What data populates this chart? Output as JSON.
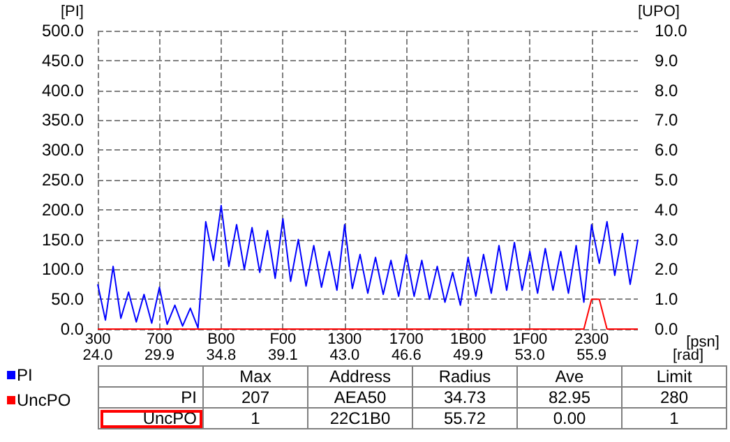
{
  "chart_data": {
    "type": "line",
    "xlabel": "[psn]",
    "ylabel": "[PI]",
    "y2label": "[UPO]",
    "categories": [
      "300",
      null,
      null,
      null,
      null,
      null,
      null,
      null,
      "700",
      null,
      null,
      null,
      null,
      null,
      null,
      null,
      "B00",
      null,
      null,
      null,
      null,
      null,
      null,
      null,
      "F00",
      null,
      null,
      null,
      null,
      null,
      null,
      null,
      "1300",
      null,
      null,
      null,
      null,
      null,
      null,
      null,
      "1700",
      null,
      null,
      null,
      null,
      null,
      null,
      null,
      "1B00",
      null,
      null,
      null,
      null,
      null,
      null,
      null,
      "1F00",
      null,
      null,
      null,
      null,
      null,
      null,
      null,
      "2300",
      null,
      null,
      null,
      null,
      null,
      null
    ],
    "ylim": [
      0,
      500
    ],
    "yticks": [
      {
        "value": 0,
        "label": "0.0"
      },
      {
        "value": 50,
        "label": "50.0"
      },
      {
        "value": 100,
        "label": "100.0"
      },
      {
        "value": 150,
        "label": "150.0"
      },
      {
        "value": 200,
        "label": "200.0"
      },
      {
        "value": 250,
        "label": "250.0"
      },
      {
        "value": 300,
        "label": "300.0"
      },
      {
        "value": 350,
        "label": "350.0"
      },
      {
        "value": 400,
        "label": "400.0"
      },
      {
        "value": 450,
        "label": "450.0"
      },
      {
        "value": 500,
        "label": "500.0"
      }
    ],
    "y2lim": [
      0,
      10
    ],
    "y2ticks": [
      {
        "value": 0,
        "label": "0.0"
      },
      {
        "value": 1,
        "label": "1.0"
      },
      {
        "value": 2,
        "label": "2.0"
      },
      {
        "value": 3,
        "label": "3.0"
      },
      {
        "value": 4,
        "label": "4.0"
      },
      {
        "value": 5,
        "label": "5.0"
      },
      {
        "value": 6,
        "label": "6.0"
      },
      {
        "value": 7,
        "label": "7.0"
      },
      {
        "value": 8,
        "label": "8.0"
      },
      {
        "value": 9,
        "label": "9.0"
      },
      {
        "value": 10,
        "label": "10.0"
      }
    ],
    "grid": true,
    "legend": "bottom left",
    "marker": "none",
    "series": [
      {
        "name": "PI",
        "color": "#0000ff",
        "values": [
          75,
          15,
          105,
          18,
          62,
          12,
          58,
          10,
          70,
          8,
          40,
          5,
          35,
          2,
          180,
          115,
          207,
          105,
          175,
          100,
          170,
          95,
          165,
          85,
          185,
          80,
          150,
          72,
          140,
          70,
          130,
          65,
          175,
          68,
          125,
          60,
          120,
          58,
          115,
          55,
          125,
          55,
          115,
          50,
          105,
          45,
          95,
          40,
          120,
          55,
          125,
          60,
          140,
          65,
          145,
          65,
          130,
          60,
          135,
          65,
          130,
          60,
          140,
          45,
          175,
          110,
          180,
          90,
          160,
          75,
          150
        ]
      },
      {
        "name": "UncPO",
        "color": "#ff0000",
        "axis": "y2",
        "values": [
          0,
          0,
          0,
          0,
          0,
          0,
          0,
          0,
          0,
          0,
          0,
          0,
          0,
          0,
          0,
          0,
          0,
          0,
          0,
          0,
          0,
          0,
          0,
          0,
          0,
          0,
          0,
          0,
          0,
          0,
          0,
          0,
          0,
          0,
          0,
          0,
          0,
          0,
          0,
          0,
          0,
          0,
          0,
          0,
          0,
          0,
          0,
          0,
          0,
          0,
          0,
          0,
          0,
          0,
          0,
          0,
          0,
          0,
          0,
          0,
          0,
          0,
          0,
          0,
          1,
          1,
          0,
          0,
          0,
          0,
          0
        ]
      }
    ],
    "annotations": [
      "24.0",
      "29.9",
      "34.8",
      "39.1",
      "43.0",
      "46.6",
      "49.9",
      "53.0",
      "55.9",
      "[rad]",
      "Max",
      "Address",
      "Radius",
      "Ave",
      "Limit",
      "207",
      "AEA50",
      "34.73",
      "82.95",
      "280",
      "1",
      "22C1B0",
      "55.72",
      "0.00",
      "1"
    ]
  }
}
